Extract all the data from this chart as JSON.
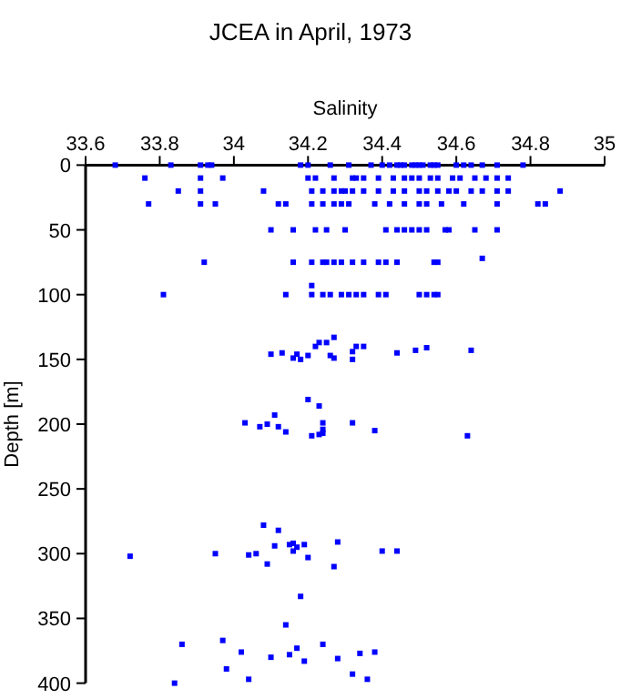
{
  "chart_data": {
    "type": "scatter",
    "title": "JCEA in April, 1973",
    "xlabel": "Salinity",
    "ylabel": "Depth [m]",
    "xlim": [
      33.6,
      35
    ],
    "xticks": [
      33.6,
      33.8,
      34,
      34.2,
      34.4,
      34.6,
      34.8,
      35
    ],
    "ylim": [
      400,
      0
    ],
    "yticks": [
      0,
      50,
      100,
      150,
      200,
      250,
      300,
      350,
      400
    ],
    "marker": "square",
    "grid": false,
    "series": [
      {
        "color": "#0000ff",
        "x": [
          33.68,
          33.83,
          33.91,
          33.93,
          33.94,
          34.18,
          34.2,
          34.26,
          34.31,
          34.37,
          34.4,
          34.42,
          34.44,
          34.45,
          34.46,
          34.48,
          34.49,
          34.5,
          34.51,
          34.53,
          34.54,
          34.55,
          34.6,
          34.62,
          34.64,
          34.67,
          34.71,
          34.78,
          33.76,
          33.91,
          33.97,
          34.2,
          34.22,
          34.27,
          34.32,
          34.33,
          34.35,
          34.39,
          34.43,
          34.46,
          34.48,
          34.5,
          34.53,
          34.55,
          34.59,
          34.61,
          34.65,
          34.68,
          34.71,
          34.74,
          33.85,
          33.91,
          34.08,
          34.21,
          34.24,
          34.27,
          34.29,
          34.3,
          34.32,
          34.35,
          34.39,
          34.43,
          34.46,
          34.5,
          34.52,
          34.55,
          34.58,
          34.6,
          34.64,
          34.67,
          34.71,
          34.74,
          34.88,
          33.77,
          33.91,
          33.95,
          34.12,
          34.14,
          34.21,
          34.24,
          34.27,
          34.29,
          34.31,
          34.38,
          34.42,
          34.46,
          34.5,
          34.52,
          34.56,
          34.62,
          34.71,
          34.82,
          34.84,
          34.1,
          34.16,
          34.22,
          34.25,
          34.3,
          34.41,
          34.44,
          34.46,
          34.48,
          34.5,
          34.52,
          34.57,
          34.58,
          34.65,
          34.71,
          33.92,
          34.16,
          34.21,
          34.24,
          34.25,
          34.27,
          34.29,
          34.32,
          34.35,
          34.39,
          34.41,
          34.44,
          34.54,
          34.55,
          34.67,
          33.81,
          34.14,
          34.21,
          34.21,
          34.24,
          34.26,
          34.29,
          34.31,
          34.33,
          34.35,
          34.39,
          34.41,
          34.5,
          34.52,
          34.54,
          34.55,
          34.1,
          34.13,
          34.16,
          34.17,
          34.18,
          34.2,
          34.22,
          34.23,
          34.25,
          34.26,
          34.27,
          34.27,
          34.32,
          34.32,
          34.33,
          34.35,
          34.44,
          34.49,
          34.52,
          34.64,
          34.2,
          34.23,
          34.11,
          34.03,
          34.07,
          34.09,
          34.12,
          34.14,
          34.21,
          34.23,
          34.24,
          34.24,
          34.24,
          34.32,
          34.38,
          34.63,
          34.08,
          34.12,
          34.11,
          34.15,
          34.16,
          34.17,
          34.19,
          34.16,
          34.2,
          34.09,
          33.72,
          33.95,
          34.04,
          34.06,
          34.28,
          34.27,
          34.4,
          34.44,
          34.18,
          34.14,
          33.86,
          33.97,
          34.02,
          34.1,
          34.15,
          34.17,
          34.19,
          34.24,
          34.28,
          34.34,
          34.38,
          33.98,
          34.04,
          33.84,
          34.32,
          34.36
        ],
        "values": [
          0,
          0,
          0,
          0,
          0,
          0,
          0,
          0,
          0,
          0,
          0,
          0,
          0,
          0,
          0,
          0,
          0,
          0,
          0,
          0,
          0,
          0,
          0,
          0,
          0,
          0,
          0,
          0,
          10,
          10,
          10,
          10,
          10,
          10,
          10,
          10,
          10,
          10,
          10,
          10,
          10,
          10,
          10,
          10,
          10,
          10,
          10,
          10,
          10,
          10,
          20,
          20,
          20,
          20,
          20,
          20,
          20,
          20,
          20,
          20,
          20,
          20,
          20,
          20,
          20,
          20,
          20,
          20,
          20,
          20,
          20,
          20,
          20,
          30,
          30,
          30,
          30,
          30,
          30,
          30,
          30,
          30,
          30,
          30,
          30,
          30,
          30,
          30,
          30,
          30,
          30,
          30,
          30,
          50,
          50,
          50,
          50,
          50,
          50,
          50,
          50,
          50,
          50,
          50,
          50,
          50,
          50,
          50,
          75,
          75,
          75,
          75,
          75,
          75,
          75,
          75,
          75,
          75,
          75,
          75,
          75,
          75,
          72,
          100,
          100,
          93,
          100,
          100,
          100,
          100,
          100,
          100,
          100,
          100,
          100,
          100,
          100,
          100,
          100,
          146,
          145,
          149,
          146,
          150,
          147,
          140,
          137,
          137,
          147,
          149,
          133,
          144,
          150,
          140,
          140,
          145,
          143,
          141,
          143,
          181,
          186,
          193,
          199,
          202,
          200,
          202,
          206,
          209,
          208,
          199,
          204,
          207,
          199,
          205,
          209,
          278,
          282,
          294,
          293,
          292,
          295,
          293,
          298,
          303,
          308,
          302,
          300,
          301,
          300,
          291,
          310,
          298,
          298,
          333,
          355,
          370,
          367,
          376,
          380,
          378,
          373,
          383,
          370,
          381,
          377,
          376,
          389,
          397,
          400,
          393,
          397
        ]
      }
    ]
  }
}
